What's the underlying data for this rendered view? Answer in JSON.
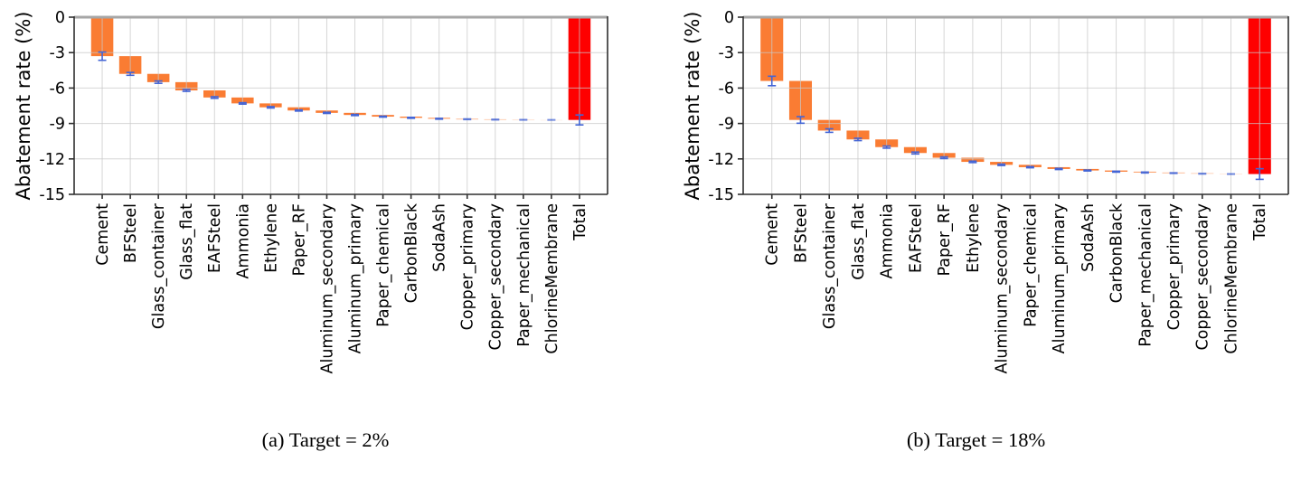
{
  "figure_title": "",
  "axis": {
    "ylabel": "Abatement rate (%)",
    "ylim": [
      -15,
      0
    ],
    "ytick_values": [
      0,
      -3,
      -6,
      -9,
      -12,
      -15
    ],
    "ytick_labels": [
      "0",
      "-3",
      "-6",
      "-9",
      "-12",
      "-15"
    ]
  },
  "colors": {
    "bar_orange": "#fa7c33",
    "bar_total_red": "#fe0000",
    "error_blue": "#4365d6",
    "gridline": "#c8c8c8",
    "spine": "#2f2f2f",
    "top_spine": "#a6a6a6",
    "text": "#000000"
  },
  "chart_data": [
    {
      "type": "bar",
      "variant": "waterfall",
      "caption": "(a) Target = 2%",
      "ylabel": "Abatement rate (%)",
      "ylim": [
        -15,
        0
      ],
      "yticks": [
        0,
        -3,
        -6,
        -9,
        -12,
        -15
      ],
      "grid": true,
      "legend": "none",
      "categories": [
        "Cement",
        "BFSteel",
        "Glass_container",
        "Glass_flat",
        "EAFSteel",
        "Ammonia",
        "Ethylene",
        "Paper_RF",
        "Aluminum_secondary",
        "Aluminum_primary",
        "Paper_chemical",
        "CarbonBlack",
        "SodaAsh",
        "Copper_primary",
        "Copper_secondary",
        "Paper_mechanical",
        "ChlorineMembrane",
        "Total"
      ],
      "segment_values": [
        -3.3,
        -1.5,
        -0.7,
        -0.7,
        -0.6,
        -0.5,
        -0.33,
        -0.27,
        -0.2,
        -0.18,
        -0.14,
        -0.1,
        -0.08,
        -0.04,
        -0.03,
        -0.02,
        -0.01
      ],
      "cumulative": [
        -3.3,
        -4.8,
        -5.5,
        -6.2,
        -6.8,
        -7.3,
        -7.63,
        -7.9,
        -8.1,
        -8.28,
        -8.42,
        -8.52,
        -8.6,
        -8.64,
        -8.67,
        -8.69,
        -8.7
      ],
      "total_value": -8.7,
      "error_bars": [
        0.35,
        0.12,
        0.1,
        0.08,
        0.07,
        0.06,
        0.06,
        0.05,
        0.05,
        0.05,
        0.04,
        0.04,
        0.04,
        0.03,
        0.03,
        0.03,
        0.03,
        0.42
      ],
      "bar_opacities": [
        1,
        1,
        1,
        1,
        1,
        1,
        1,
        1,
        1,
        1,
        1,
        1,
        0.85,
        0.62,
        0.45,
        0.26,
        0.13,
        1
      ]
    },
    {
      "type": "bar",
      "variant": "waterfall",
      "caption": "(b) Target = 18%",
      "ylabel": "Abatement rate (%)",
      "ylim": [
        -15,
        0
      ],
      "yticks": [
        0,
        -3,
        -6,
        -9,
        -12,
        -15
      ],
      "grid": true,
      "legend": "none",
      "categories": [
        "Cement",
        "BFSteel",
        "Glass_container",
        "Glass_flat",
        "Ammonia",
        "EAFSteel",
        "Paper_RF",
        "Ethylene",
        "Aluminum_secondary",
        "Paper_chemical",
        "Aluminum_primary",
        "SodaAsh",
        "CarbonBlack",
        "Paper_mechanical",
        "Copper_primary",
        "Copper_secondary",
        "ChlorineMembrane",
        "Total"
      ],
      "segment_values": [
        -5.4,
        -3.3,
        -0.9,
        -0.75,
        -0.65,
        -0.5,
        -0.4,
        -0.35,
        -0.25,
        -0.2,
        -0.15,
        -0.13,
        -0.1,
        -0.07,
        -0.05,
        -0.05,
        -0.03
      ],
      "cumulative": [
        -5.4,
        -8.7,
        -9.6,
        -10.35,
        -11.0,
        -11.5,
        -11.9,
        -12.25,
        -12.5,
        -12.7,
        -12.85,
        -12.98,
        -13.08,
        -13.15,
        -13.2,
        -13.25,
        -13.28
      ],
      "total_value": -13.28,
      "error_bars": [
        0.4,
        0.28,
        0.15,
        0.1,
        0.09,
        0.08,
        0.07,
        0.06,
        0.06,
        0.05,
        0.05,
        0.04,
        0.04,
        0.04,
        0.03,
        0.03,
        0.03,
        0.45
      ],
      "bar_opacities": [
        1,
        1,
        1,
        1,
        1,
        1,
        1,
        1,
        1,
        1,
        1,
        1,
        1,
        0.85,
        0.62,
        0.42,
        0.2,
        1
      ]
    }
  ]
}
